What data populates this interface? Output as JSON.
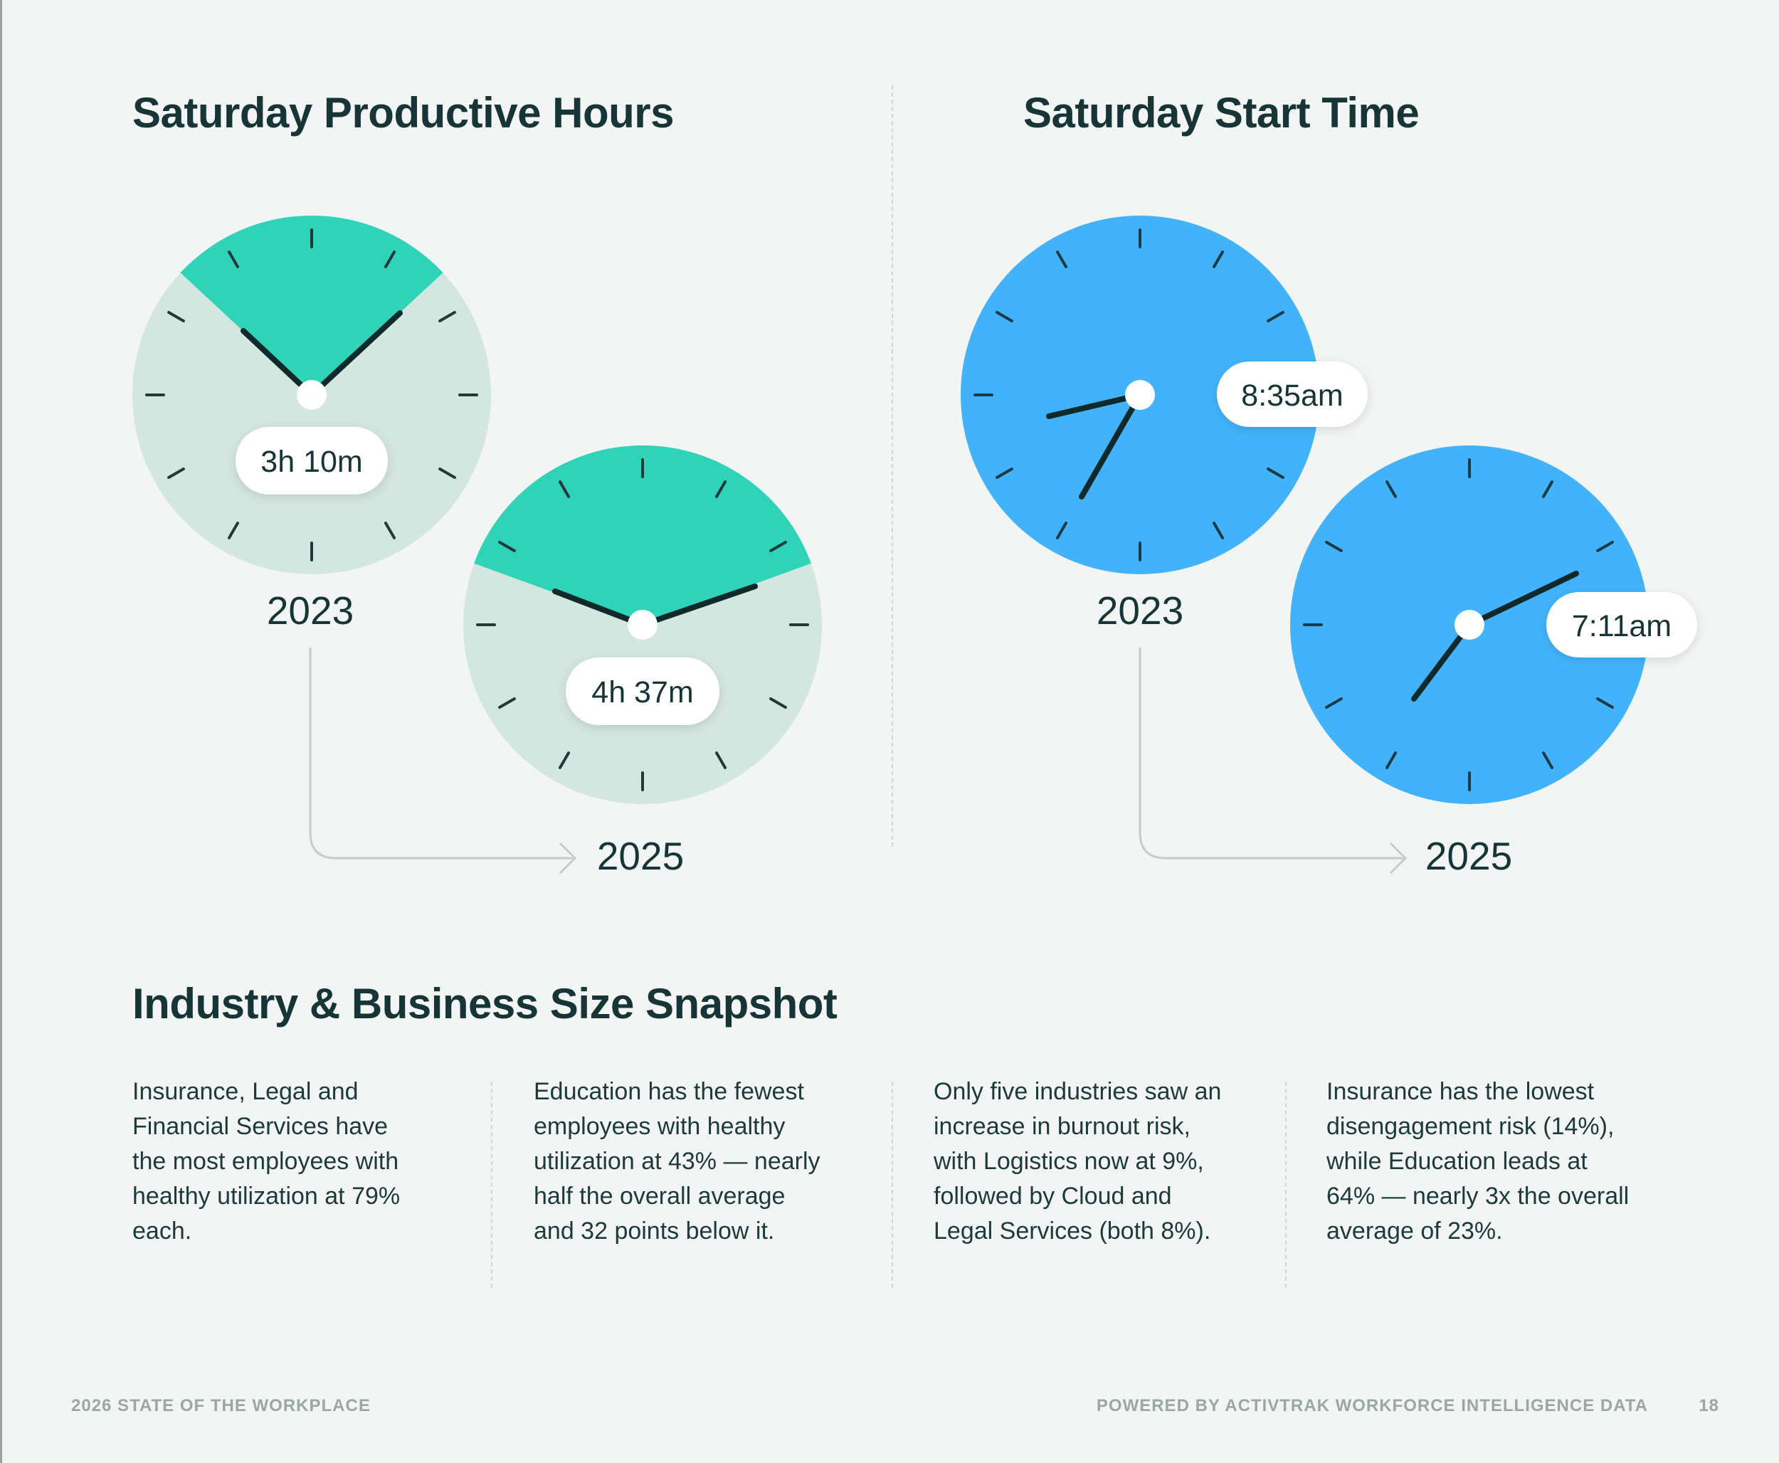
{
  "productive_hours": {
    "title": "Saturday Productive Hours",
    "before": {
      "year": "2023",
      "value": "3h 10m"
    },
    "after": {
      "year": "2025",
      "value": "4h 37m"
    }
  },
  "start_time": {
    "title": "Saturday Start Time",
    "before": {
      "year": "2023",
      "value": "8:35am"
    },
    "after": {
      "year": "2025",
      "value": "7:11am"
    }
  },
  "snapshot": {
    "title": "Industry & Business Size Snapshot",
    "items": [
      {
        "lines": [
          "Insurance, Legal and",
          "Financial Services have",
          "the most employees with",
          "healthy utilization at 79%",
          "each."
        ]
      },
      {
        "lines": [
          "Education has the fewest",
          "employees with healthy",
          "utilization at 43% — nearly",
          "half the overall average",
          "and 32 points below it."
        ]
      },
      {
        "lines": [
          "Only five industries saw an",
          "increase in burnout risk,",
          "with Logistics now at 9%,",
          "followed by Cloud and",
          "Legal Services (both 8%)."
        ]
      },
      {
        "lines": [
          "Insurance has the lowest",
          "disengagement risk (14%),",
          "while Education leads at",
          "64% — nearly 3x the overall",
          "average of 23%."
        ]
      }
    ]
  },
  "footer": {
    "left": "2026 STATE OF THE WORKPLACE",
    "right": "POWERED BY ACTIVTRAK WORKFORCE INTELLIGENCE DATA",
    "page": "18"
  },
  "colors": {
    "productive_face": "#d4e6e0",
    "productive_wedge": "#2fd3b8",
    "start_face": "#42b3fb",
    "hand": "#102a2b",
    "text": "#173536"
  },
  "icons": [
    "clock-icon",
    "arrow-right-icon"
  ]
}
